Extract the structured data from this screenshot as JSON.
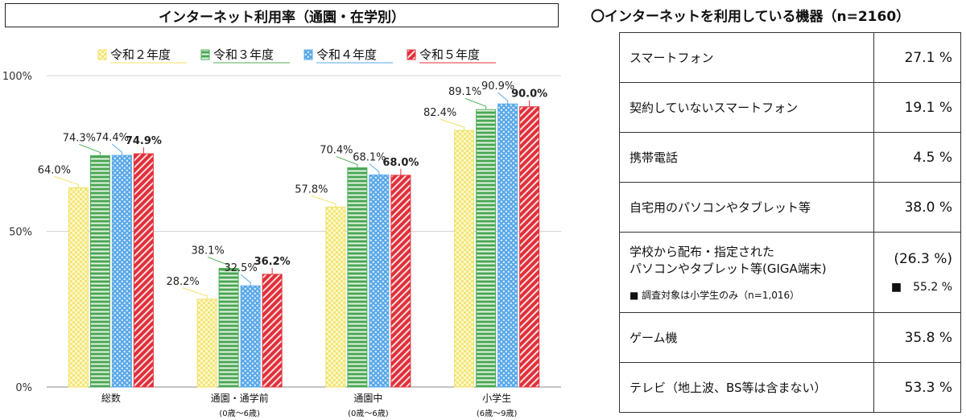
{
  "chart_title": "インターネット利用率（通園・在学別）",
  "chart_data": {
    "type": "bar",
    "categories": [
      {
        "label": "総数",
        "sub": ""
      },
      {
        "label": "通園・通学前",
        "sub": "(0歳～6歳)"
      },
      {
        "label": "通園中",
        "sub": "(0歳～6歳)"
      },
      {
        "label": "小学生",
        "sub": "(6歳～9歳)"
      }
    ],
    "series": [
      {
        "name": "令和２年度",
        "values": [
          64.0,
          28.2,
          57.8,
          82.4
        ],
        "labels": [
          "64.0%",
          "28.2%",
          "57.8%",
          "82.4%"
        ],
        "color": "#f0e06a",
        "pattern": "checker"
      },
      {
        "name": "令和３年度",
        "values": [
          74.3,
          38.1,
          70.4,
          89.1
        ],
        "labels": [
          "74.3%",
          "38.1%",
          "70.4%",
          "89.1%"
        ],
        "color": "#4fae5a",
        "pattern": "hstripe"
      },
      {
        "name": "令和４年度",
        "values": [
          74.4,
          32.5,
          68.1,
          90.9
        ],
        "labels": [
          "74.4%",
          "32.5%",
          "68.1%",
          "90.9%"
        ],
        "color": "#5aa8e6",
        "pattern": "dots"
      },
      {
        "name": "令和５年度",
        "values": [
          74.9,
          36.2,
          68.0,
          90.0
        ],
        "labels": [
          "74.9%",
          "36.2%",
          "68.0%",
          "90.0%"
        ],
        "color": "#e0303a",
        "pattern": "diag",
        "bold_labels": true
      }
    ],
    "yticks": [
      {
        "value": 0,
        "label": "0%"
      },
      {
        "value": 50,
        "label": "50%"
      },
      {
        "value": 100,
        "label": "100%"
      }
    ],
    "ylim": [
      0,
      100
    ],
    "legend_position": "top"
  },
  "devices": {
    "title": "〇インターネットを利用している機器（n=2160）",
    "rows": [
      {
        "label": "スマートフォン",
        "value": "27.1 %"
      },
      {
        "label": "契約していないスマートフォン",
        "value": "19.1 %"
      },
      {
        "label": "携帯電話",
        "value": "4.5 %"
      },
      {
        "label": "自宅用のパソコンやタブレット等",
        "value": "38.0 %"
      },
      {
        "label": "学校から配布・指定された",
        "label2": "パソコンやタブレット等(GIGA端末)",
        "note": "■ 調査対象は小学生のみ（n=1,016）",
        "value": "(26.3 %)",
        "subvalue": "■　55.2 %"
      },
      {
        "label": "ゲーム機",
        "value": "35.8 %"
      },
      {
        "label": "テレビ（地上波、BS等は含まない）",
        "value": "53.3 %"
      }
    ]
  }
}
